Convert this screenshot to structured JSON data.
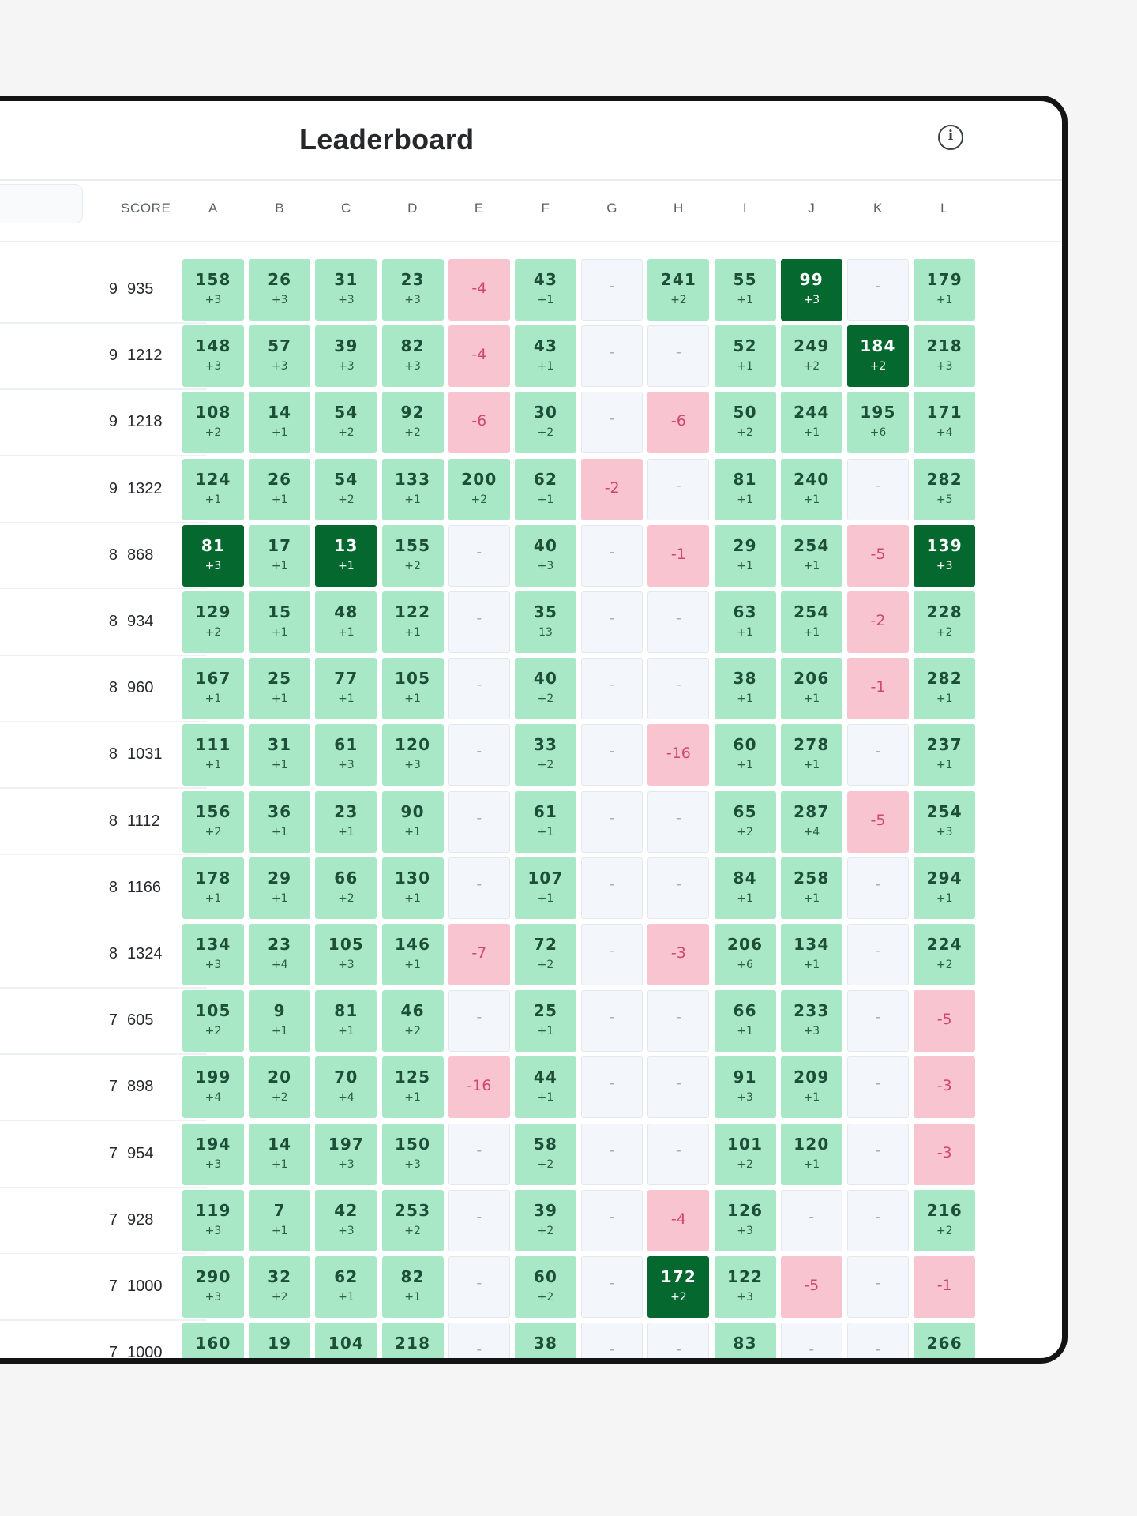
{
  "header": {
    "title": "Leaderboard",
    "info_icon": "info-icon"
  },
  "table": {
    "search_placeholder": "",
    "score_header": "SCORE",
    "columns": [
      "A",
      "B",
      "C",
      "D",
      "E",
      "F",
      "G",
      "H",
      "I",
      "J",
      "K",
      "L"
    ],
    "empty_marker": "-",
    "rows": [
      {
        "solved": "9",
        "score": "935",
        "cells": [
          [
            "pos",
            "158",
            "+3"
          ],
          [
            "pos",
            "26",
            "+3"
          ],
          [
            "pos",
            "31",
            "+3"
          ],
          [
            "pos",
            "23",
            "+3"
          ],
          [
            "neg",
            "-4",
            ""
          ],
          [
            "pos",
            "43",
            "+1"
          ],
          [
            "empty",
            "",
            ""
          ],
          [
            "pos",
            "241",
            "+2"
          ],
          [
            "pos",
            "55",
            "+1"
          ],
          [
            "first",
            "99",
            "+3"
          ],
          [
            "empty",
            "",
            ""
          ],
          [
            "pos",
            "179",
            "+1"
          ]
        ]
      },
      {
        "solved": "9",
        "score": "1212",
        "cells": [
          [
            "pos",
            "148",
            "+3"
          ],
          [
            "pos",
            "57",
            "+3"
          ],
          [
            "pos",
            "39",
            "+3"
          ],
          [
            "pos",
            "82",
            "+3"
          ],
          [
            "neg",
            "-4",
            ""
          ],
          [
            "pos",
            "43",
            "+1"
          ],
          [
            "empty",
            "",
            ""
          ],
          [
            "empty",
            "",
            ""
          ],
          [
            "pos",
            "52",
            "+1"
          ],
          [
            "pos",
            "249",
            "+2"
          ],
          [
            "first",
            "184",
            "+2"
          ],
          [
            "pos",
            "218",
            "+3"
          ]
        ]
      },
      {
        "solved": "9",
        "score": "1218",
        "cells": [
          [
            "pos",
            "108",
            "+2"
          ],
          [
            "pos",
            "14",
            "+1"
          ],
          [
            "pos",
            "54",
            "+2"
          ],
          [
            "pos",
            "92",
            "+2"
          ],
          [
            "neg",
            "-6",
            ""
          ],
          [
            "pos",
            "30",
            "+2"
          ],
          [
            "empty",
            "",
            ""
          ],
          [
            "neg",
            "-6",
            ""
          ],
          [
            "pos",
            "50",
            "+2"
          ],
          [
            "pos",
            "244",
            "+1"
          ],
          [
            "pos",
            "195",
            "+6"
          ],
          [
            "pos",
            "171",
            "+4"
          ]
        ]
      },
      {
        "solved": "9",
        "score": "1322",
        "cells": [
          [
            "pos",
            "124",
            "+1"
          ],
          [
            "pos",
            "26",
            "+1"
          ],
          [
            "pos",
            "54",
            "+2"
          ],
          [
            "pos",
            "133",
            "+1"
          ],
          [
            "pos",
            "200",
            "+2"
          ],
          [
            "pos",
            "62",
            "+1"
          ],
          [
            "neg",
            "-2",
            ""
          ],
          [
            "empty",
            "",
            ""
          ],
          [
            "pos",
            "81",
            "+1"
          ],
          [
            "pos",
            "240",
            "+1"
          ],
          [
            "empty",
            "",
            ""
          ],
          [
            "pos",
            "282",
            "+5"
          ]
        ]
      },
      {
        "solved": "8",
        "score": "868",
        "cells": [
          [
            "first",
            "81",
            "+3"
          ],
          [
            "pos",
            "17",
            "+1"
          ],
          [
            "first",
            "13",
            "+1"
          ],
          [
            "pos",
            "155",
            "+2"
          ],
          [
            "empty",
            "",
            ""
          ],
          [
            "pos",
            "40",
            "+3"
          ],
          [
            "empty",
            "",
            ""
          ],
          [
            "neg",
            "-1",
            ""
          ],
          [
            "pos",
            "29",
            "+1"
          ],
          [
            "pos",
            "254",
            "+1"
          ],
          [
            "neg",
            "-5",
            ""
          ],
          [
            "first",
            "139",
            "+3"
          ]
        ]
      },
      {
        "solved": "8",
        "score": "934",
        "cells": [
          [
            "pos",
            "129",
            "+2"
          ],
          [
            "pos",
            "15",
            "+1"
          ],
          [
            "pos",
            "48",
            "+1"
          ],
          [
            "pos",
            "122",
            "+1"
          ],
          [
            "empty",
            "",
            ""
          ],
          [
            "pos",
            "35",
            "13"
          ],
          [
            "empty",
            "",
            ""
          ],
          [
            "empty",
            "",
            ""
          ],
          [
            "pos",
            "63",
            "+1"
          ],
          [
            "pos",
            "254",
            "+1"
          ],
          [
            "neg",
            "-2",
            ""
          ],
          [
            "pos",
            "228",
            "+2"
          ]
        ]
      },
      {
        "solved": "8",
        "score": "960",
        "cells": [
          [
            "pos",
            "167",
            "+1"
          ],
          [
            "pos",
            "25",
            "+1"
          ],
          [
            "pos",
            "77",
            "+1"
          ],
          [
            "pos",
            "105",
            "+1"
          ],
          [
            "empty",
            "",
            ""
          ],
          [
            "pos",
            "40",
            "+2"
          ],
          [
            "empty",
            "",
            ""
          ],
          [
            "empty",
            "",
            ""
          ],
          [
            "pos",
            "38",
            "+1"
          ],
          [
            "pos",
            "206",
            "+1"
          ],
          [
            "neg",
            "-1",
            ""
          ],
          [
            "pos",
            "282",
            "+1"
          ]
        ]
      },
      {
        "solved": "8",
        "score": "1031",
        "cells": [
          [
            "pos",
            "111",
            "+1"
          ],
          [
            "pos",
            "31",
            "+1"
          ],
          [
            "pos",
            "61",
            "+3"
          ],
          [
            "pos",
            "120",
            "+3"
          ],
          [
            "empty",
            "",
            ""
          ],
          [
            "pos",
            "33",
            "+2"
          ],
          [
            "empty",
            "",
            ""
          ],
          [
            "neg",
            "-16",
            ""
          ],
          [
            "pos",
            "60",
            "+1"
          ],
          [
            "pos",
            "278",
            "+1"
          ],
          [
            "empty",
            "",
            ""
          ],
          [
            "pos",
            "237",
            "+1"
          ]
        ]
      },
      {
        "solved": "8",
        "score": "1112",
        "cells": [
          [
            "pos",
            "156",
            "+2"
          ],
          [
            "pos",
            "36",
            "+1"
          ],
          [
            "pos",
            "23",
            "+1"
          ],
          [
            "pos",
            "90",
            "+1"
          ],
          [
            "empty",
            "",
            ""
          ],
          [
            "pos",
            "61",
            "+1"
          ],
          [
            "empty",
            "",
            ""
          ],
          [
            "empty",
            "",
            ""
          ],
          [
            "pos",
            "65",
            "+2"
          ],
          [
            "pos",
            "287",
            "+4"
          ],
          [
            "neg",
            "-5",
            ""
          ],
          [
            "pos",
            "254",
            "+3"
          ]
        ]
      },
      {
        "solved": "8",
        "score": "1166",
        "cells": [
          [
            "pos",
            "178",
            "+1"
          ],
          [
            "pos",
            "29",
            "+1"
          ],
          [
            "pos",
            "66",
            "+2"
          ],
          [
            "pos",
            "130",
            "+1"
          ],
          [
            "empty",
            "",
            ""
          ],
          [
            "pos",
            "107",
            "+1"
          ],
          [
            "empty",
            "",
            ""
          ],
          [
            "empty",
            "",
            ""
          ],
          [
            "pos",
            "84",
            "+1"
          ],
          [
            "pos",
            "258",
            "+1"
          ],
          [
            "empty",
            "",
            ""
          ],
          [
            "pos",
            "294",
            "+1"
          ]
        ]
      },
      {
        "solved": "8",
        "score": "1324",
        "cells": [
          [
            "pos",
            "134",
            "+3"
          ],
          [
            "pos",
            "23",
            "+4"
          ],
          [
            "pos",
            "105",
            "+3"
          ],
          [
            "pos",
            "146",
            "+1"
          ],
          [
            "neg",
            "-7",
            ""
          ],
          [
            "pos",
            "72",
            "+2"
          ],
          [
            "empty",
            "",
            ""
          ],
          [
            "neg",
            "-3",
            ""
          ],
          [
            "pos",
            "206",
            "+6"
          ],
          [
            "pos",
            "134",
            "+1"
          ],
          [
            "empty",
            "",
            ""
          ],
          [
            "pos",
            "224",
            "+2"
          ]
        ]
      },
      {
        "solved": "7",
        "score": "605",
        "cells": [
          [
            "pos",
            "105",
            "+2"
          ],
          [
            "pos",
            "9",
            "+1"
          ],
          [
            "pos",
            "81",
            "+1"
          ],
          [
            "pos",
            "46",
            "+2"
          ],
          [
            "empty",
            "",
            ""
          ],
          [
            "pos",
            "25",
            "+1"
          ],
          [
            "empty",
            "",
            ""
          ],
          [
            "empty",
            "",
            ""
          ],
          [
            "pos",
            "66",
            "+1"
          ],
          [
            "pos",
            "233",
            "+3"
          ],
          [
            "empty",
            "",
            ""
          ],
          [
            "neg",
            "-5",
            ""
          ]
        ]
      },
      {
        "solved": "7",
        "score": "898",
        "cells": [
          [
            "pos",
            "199",
            "+4"
          ],
          [
            "pos",
            "20",
            "+2"
          ],
          [
            "pos",
            "70",
            "+4"
          ],
          [
            "pos",
            "125",
            "+1"
          ],
          [
            "neg",
            "-16",
            ""
          ],
          [
            "pos",
            "44",
            "+1"
          ],
          [
            "empty",
            "",
            ""
          ],
          [
            "empty",
            "",
            ""
          ],
          [
            "pos",
            "91",
            "+3"
          ],
          [
            "pos",
            "209",
            "+1"
          ],
          [
            "empty",
            "",
            ""
          ],
          [
            "neg",
            "-3",
            ""
          ]
        ]
      },
      {
        "solved": "7",
        "score": "954",
        "cells": [
          [
            "pos",
            "194",
            "+3"
          ],
          [
            "pos",
            "14",
            "+1"
          ],
          [
            "pos",
            "197",
            "+3"
          ],
          [
            "pos",
            "150",
            "+3"
          ],
          [
            "empty",
            "",
            ""
          ],
          [
            "pos",
            "58",
            "+2"
          ],
          [
            "empty",
            "",
            ""
          ],
          [
            "empty",
            "",
            ""
          ],
          [
            "pos",
            "101",
            "+2"
          ],
          [
            "pos",
            "120",
            "+1"
          ],
          [
            "empty",
            "",
            ""
          ],
          [
            "neg",
            "-3",
            ""
          ]
        ]
      },
      {
        "solved": "7",
        "score": "928",
        "cells": [
          [
            "pos",
            "119",
            "+3"
          ],
          [
            "pos",
            "7",
            "+1"
          ],
          [
            "pos",
            "42",
            "+3"
          ],
          [
            "pos",
            "253",
            "+2"
          ],
          [
            "empty",
            "",
            ""
          ],
          [
            "pos",
            "39",
            "+2"
          ],
          [
            "empty",
            "",
            ""
          ],
          [
            "neg",
            "-4",
            ""
          ],
          [
            "pos",
            "126",
            "+3"
          ],
          [
            "empty",
            "",
            ""
          ],
          [
            "empty",
            "",
            ""
          ],
          [
            "pos",
            "216",
            "+2"
          ]
        ]
      },
      {
        "solved": "7",
        "score": "1000",
        "cells": [
          [
            "pos",
            "290",
            "+3"
          ],
          [
            "pos",
            "32",
            "+2"
          ],
          [
            "pos",
            "62",
            "+1"
          ],
          [
            "pos",
            "82",
            "+1"
          ],
          [
            "empty",
            "",
            ""
          ],
          [
            "pos",
            "60",
            "+2"
          ],
          [
            "empty",
            "",
            ""
          ],
          [
            "first",
            "172",
            "+2"
          ],
          [
            "pos",
            "122",
            "+3"
          ],
          [
            "neg",
            "-5",
            ""
          ],
          [
            "empty",
            "",
            ""
          ],
          [
            "neg",
            "-1",
            ""
          ]
        ]
      },
      {
        "solved": "7",
        "score": "1000",
        "cells": [
          [
            "pos",
            "160",
            ""
          ],
          [
            "pos",
            "19",
            ""
          ],
          [
            "pos",
            "104",
            ""
          ],
          [
            "pos",
            "218",
            ""
          ],
          [
            "empty",
            "",
            ""
          ],
          [
            "pos",
            "38",
            ""
          ],
          [
            "empty",
            "",
            ""
          ],
          [
            "empty",
            "",
            ""
          ],
          [
            "pos",
            "83",
            ""
          ],
          [
            "empty",
            "",
            ""
          ],
          [
            "empty",
            "",
            ""
          ],
          [
            "pos",
            "266",
            ""
          ]
        ]
      }
    ]
  }
}
